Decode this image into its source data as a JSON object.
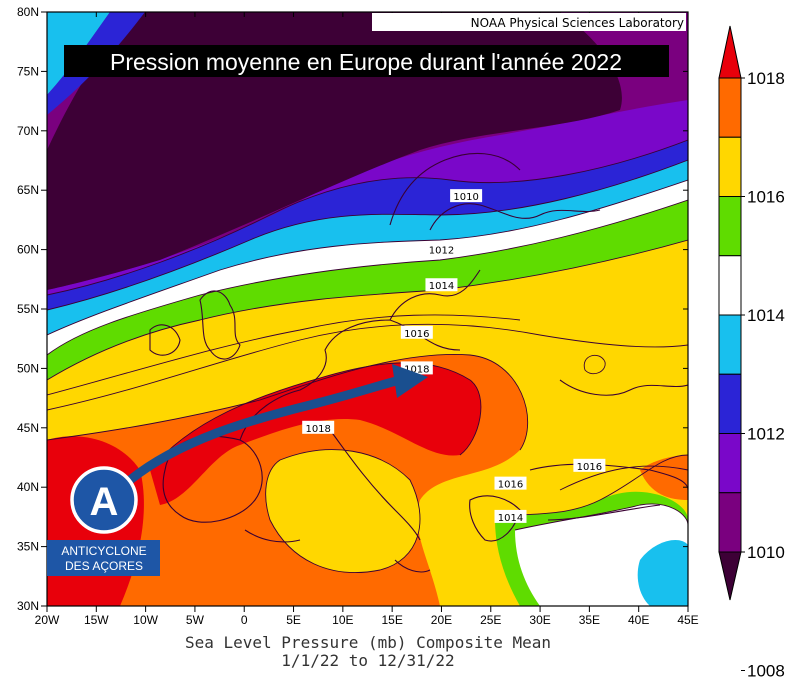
{
  "title": "Pression moyenne en Europe durant l'année 2022",
  "credit": "NOAA Physical Sciences Laboratory",
  "caption": {
    "line1": "Sea Level Pressure (mb) Composite Mean",
    "line2": "1/1/22  to 12/31/22"
  },
  "axes": {
    "lon_labels": [
      "20W",
      "15W",
      "10W",
      "5W",
      "0",
      "5E",
      "10E",
      "15E",
      "20E",
      "25E",
      "30E",
      "35E",
      "40E",
      "45E"
    ],
    "lat_labels": [
      "30N",
      "35N",
      "40N",
      "45N",
      "50N",
      "55N",
      "60N",
      "65N",
      "70N",
      "75N",
      "80N"
    ],
    "lon_range": [
      -20,
      45
    ],
    "lat_range": [
      30,
      80
    ]
  },
  "colorbar": {
    "ticks": [
      "1018",
      "1016",
      "1014",
      "1012",
      "1010",
      "1008"
    ],
    "colors": [
      "#e8000b",
      "#ff6a00",
      "#ffd700",
      "#5fdc00",
      "#ffffff",
      "#18c0ee",
      "#2b24d6",
      "#7a07c9",
      "#7a007f",
      "#3d0036"
    ]
  },
  "contour_labels": [
    {
      "text": "1010",
      "lon": 22.5,
      "lat": 64.5
    },
    {
      "text": "1012",
      "lon": 20.0,
      "lat": 60.0
    },
    {
      "text": "1014",
      "lon": 20.0,
      "lat": 57.0
    },
    {
      "text": "1016",
      "lon": 17.5,
      "lat": 53.0
    },
    {
      "text": "1018",
      "lon": 17.5,
      "lat": 50.0
    },
    {
      "text": "1018",
      "lon": 7.5,
      "lat": 45.0
    },
    {
      "text": "1016",
      "lon": 35.0,
      "lat": 41.8
    },
    {
      "text": "1016",
      "lon": 27.0,
      "lat": 40.3
    },
    {
      "text": "1014",
      "lon": 27.0,
      "lat": 37.5
    }
  ],
  "anticyclone": {
    "letter": "A",
    "line1": "ANTICYCLONE",
    "line2": "DES AÇORES"
  }
}
